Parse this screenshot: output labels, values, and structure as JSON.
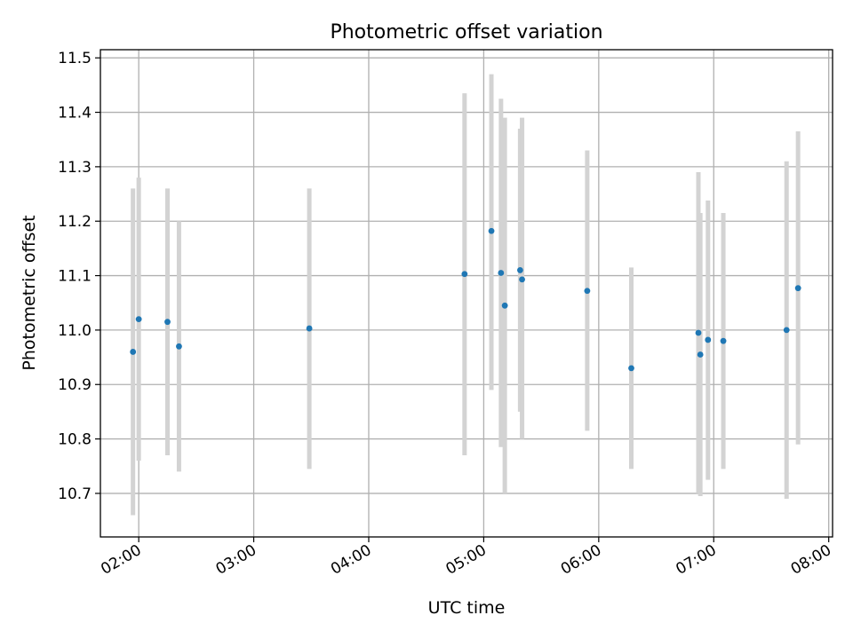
{
  "chart_data": {
    "type": "scatter",
    "title": "Photometric offset variation",
    "xlabel": "UTC time",
    "ylabel": "Photometric offset",
    "x_unit": "UTC time (HH:MM)",
    "xlim": [
      "01:40",
      "08:02"
    ],
    "ylim": [
      10.62,
      11.515
    ],
    "x_ticks": [
      "02:00",
      "03:00",
      "04:00",
      "05:00",
      "06:00",
      "07:00",
      "08:00"
    ],
    "y_ticks": [
      "10.7",
      "10.8",
      "10.9",
      "11.0",
      "11.1",
      "11.2",
      "11.3",
      "11.4",
      "11.5"
    ],
    "grid": true,
    "colors": {
      "point": "#1f77b4",
      "errorbar": "#d3d3d3",
      "grid": "#b0b0b0",
      "axes": "#000000"
    },
    "points": [
      {
        "x": "01:57",
        "y": 10.96,
        "ylo": 10.66,
        "yhi": 11.26
      },
      {
        "x": "02:00",
        "y": 11.02,
        "ylo": 10.76,
        "yhi": 11.28
      },
      {
        "x": "02:15",
        "y": 11.015,
        "ylo": 10.77,
        "yhi": 11.26
      },
      {
        "x": "02:21",
        "y": 10.97,
        "ylo": 10.74,
        "yhi": 11.2
      },
      {
        "x": "03:29",
        "y": 11.003,
        "ylo": 10.745,
        "yhi": 11.26
      },
      {
        "x": "04:50",
        "y": 11.103,
        "ylo": 10.77,
        "yhi": 11.435
      },
      {
        "x": "05:04",
        "y": 11.182,
        "ylo": 10.89,
        "yhi": 11.47
      },
      {
        "x": "05:09",
        "y": 11.105,
        "ylo": 10.785,
        "yhi": 11.425
      },
      {
        "x": "05:11",
        "y": 11.045,
        "ylo": 10.7,
        "yhi": 11.39
      },
      {
        "x": "05:19",
        "y": 11.11,
        "ylo": 10.85,
        "yhi": 11.37
      },
      {
        "x": "05:20",
        "y": 11.093,
        "ylo": 10.8,
        "yhi": 11.39
      },
      {
        "x": "05:54",
        "y": 11.072,
        "ylo": 10.815,
        "yhi": 11.33
      },
      {
        "x": "06:17",
        "y": 10.93,
        "ylo": 10.745,
        "yhi": 11.115
      },
      {
        "x": "06:52",
        "y": 10.995,
        "ylo": 10.7,
        "yhi": 11.29
      },
      {
        "x": "06:53",
        "y": 10.955,
        "ylo": 10.695,
        "yhi": 11.215
      },
      {
        "x": "06:57",
        "y": 10.982,
        "ylo": 10.725,
        "yhi": 11.238
      },
      {
        "x": "07:05",
        "y": 10.98,
        "ylo": 10.745,
        "yhi": 11.215
      },
      {
        "x": "07:38",
        "y": 11.0,
        "ylo": 10.69,
        "yhi": 11.31
      },
      {
        "x": "07:44",
        "y": 11.077,
        "ylo": 10.79,
        "yhi": 11.365
      }
    ]
  }
}
